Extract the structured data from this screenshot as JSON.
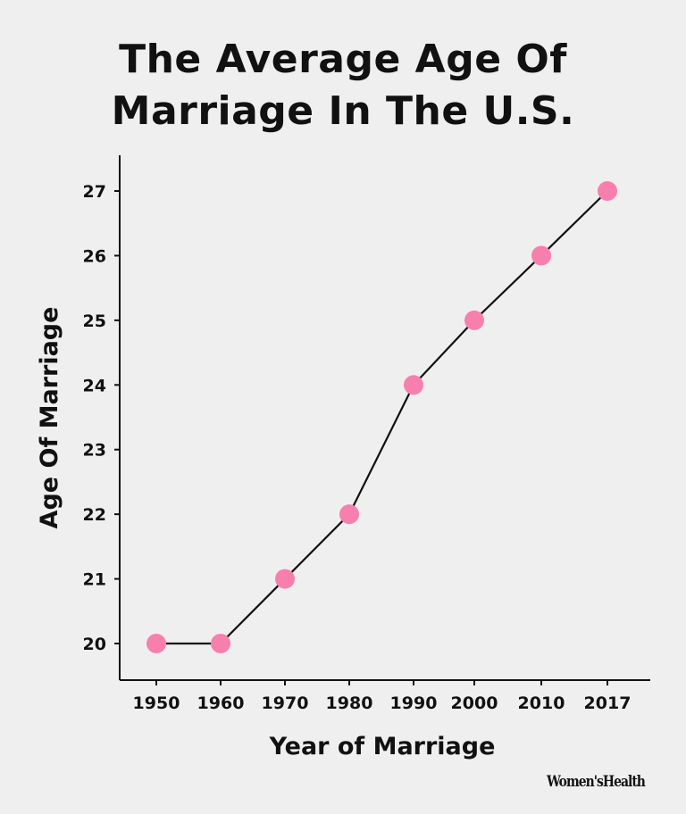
{
  "chart_data": {
    "type": "line",
    "title": [
      "The Average Age Of",
      "Marriage In The U.S."
    ],
    "xlabel": "Year of Marriage",
    "ylabel": "Age Of Marriage",
    "categories": [
      "1950",
      "1960",
      "1970",
      "1980",
      "1990",
      "2000",
      "2010",
      "2017"
    ],
    "values": [
      20,
      20,
      21,
      22,
      24,
      25,
      26,
      27
    ],
    "yticks": [
      20,
      21,
      22,
      23,
      24,
      25,
      26,
      27
    ],
    "ylim": [
      19.5,
      27.6
    ],
    "grid": false,
    "marker_color": "#f77fae",
    "line_color": "#111111"
  },
  "branding": {
    "logo_text": "Women'sHealth"
  }
}
